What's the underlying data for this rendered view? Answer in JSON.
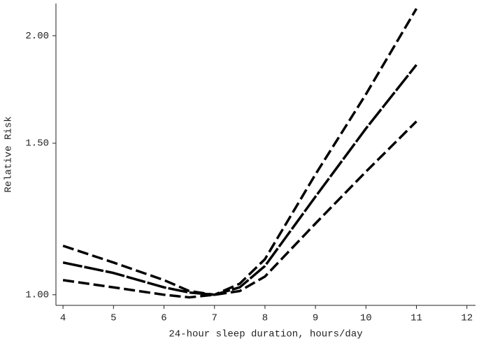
{
  "chart_data": {
    "type": "line",
    "x_label": "24-hour sleep duration, hours/day",
    "y_label": "Relative Risk",
    "x": [
      4,
      5,
      6,
      6.5,
      7,
      7.5,
      8,
      9,
      10,
      11
    ],
    "series": [
      {
        "color": "#000000",
        "dash": [
          16,
          6
        ],
        "values": [
          1.14,
          1.09,
          1.04,
          1.01,
          1.0,
          1.03,
          1.1,
          1.38,
          1.71,
          2.15
        ]
      },
      {
        "color": "#000000",
        "dash": [
          28,
          3
        ],
        "values": [
          1.09,
          1.06,
          1.02,
          1.006,
          1.0,
          1.02,
          1.08,
          1.3,
          1.56,
          1.85
        ]
      },
      {
        "color": "#000000",
        "dash": [
          16,
          6
        ],
        "values": [
          1.04,
          1.02,
          1.0,
          0.993,
          1.0,
          1.01,
          1.05,
          1.21,
          1.39,
          1.59
        ]
      }
    ],
    "xlim": [
      3.86,
      12.17
    ],
    "xticks": [
      4,
      5,
      6,
      7,
      8,
      9,
      10,
      11,
      12
    ],
    "ylim": [
      0.972,
      2.18
    ],
    "yticks": [
      {
        "value": 1,
        "label": "1.00"
      },
      {
        "value": 1.5,
        "label": "1.50"
      },
      {
        "value": 2,
        "label": "2.00"
      }
    ],
    "y_log": true,
    "grid": false
  }
}
